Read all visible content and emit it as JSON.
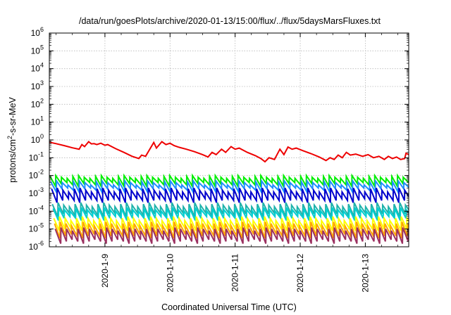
{
  "chart_data": {
    "type": "line",
    "title": "/data/run/goesPlots/archive/2020-01-13/15:00/flux/../flux/5daysMarsFluxes.txt",
    "xlabel": "Coordinated Universal Time (UTC)",
    "ylabel_parts": [
      "protons/cm",
      "2",
      "-s-sr-MeV"
    ],
    "y_scale": "log",
    "ylim": [
      1e-06,
      1000000.0
    ],
    "xlim": [
      "2020-01-08T03:30",
      "2020-01-13T16:00"
    ],
    "grid": true,
    "legend": "none",
    "y_ticks": [
      {
        "base": "10",
        "exp": "-6",
        "value": 1e-06
      },
      {
        "base": "10",
        "exp": "-5",
        "value": 1e-05
      },
      {
        "base": "10",
        "exp": "-4",
        "value": 0.0001
      },
      {
        "base": "10",
        "exp": "-3",
        "value": 0.001
      },
      {
        "base": "10",
        "exp": "-2",
        "value": 0.01
      },
      {
        "base": "10",
        "exp": "-1",
        "value": 0.1
      },
      {
        "base": "10",
        "exp": "0",
        "value": 1
      },
      {
        "base": "10",
        "exp": "1",
        "value": 10
      },
      {
        "base": "10",
        "exp": "2",
        "value": 100
      },
      {
        "base": "10",
        "exp": "3",
        "value": 1000
      },
      {
        "base": "10",
        "exp": "4",
        "value": 10000
      },
      {
        "base": "10",
        "exp": "5",
        "value": 100000
      },
      {
        "base": "10",
        "exp": "6",
        "value": 1000000
      }
    ],
    "x_ticks": [
      {
        "label": "2020-1-9",
        "date": "2020-01-09"
      },
      {
        "label": "2020-1-10",
        "date": "2020-01-10"
      },
      {
        "label": "2020-1-11",
        "date": "2020-01-11"
      },
      {
        "label": "2020-1-12",
        "date": "2020-01-12"
      },
      {
        "label": "2020-1-13",
        "date": "2020-01-13"
      }
    ],
    "series": [
      {
        "color": "#ee0000",
        "width": 2,
        "points": [
          [
            "2020-01-08T03:30",
            0.75
          ],
          [
            "2020-01-08T06:00",
            0.62
          ],
          [
            "2020-01-08T09:00",
            0.48
          ],
          [
            "2020-01-08T12:00",
            0.36
          ],
          [
            "2020-01-08T14:30",
            0.3
          ],
          [
            "2020-01-08T15:30",
            0.55
          ],
          [
            "2020-01-08T16:30",
            0.42
          ],
          [
            "2020-01-08T18:00",
            0.8
          ],
          [
            "2020-01-08T19:00",
            0.6
          ],
          [
            "2020-01-08T20:00",
            0.62
          ],
          [
            "2020-01-08T21:00",
            0.55
          ],
          [
            "2020-01-08T22:30",
            0.65
          ],
          [
            "2020-01-09T00:00",
            0.5
          ],
          [
            "2020-01-09T01:00",
            0.55
          ],
          [
            "2020-01-09T04:00",
            0.32
          ],
          [
            "2020-01-09T07:00",
            0.2
          ],
          [
            "2020-01-09T10:00",
            0.12
          ],
          [
            "2020-01-09T12:30",
            0.09
          ],
          [
            "2020-01-09T13:30",
            0.14
          ],
          [
            "2020-01-09T15:00",
            0.12
          ],
          [
            "2020-01-09T18:00",
            0.72
          ],
          [
            "2020-01-09T19:00",
            0.35
          ],
          [
            "2020-01-09T21:00",
            0.8
          ],
          [
            "2020-01-09T22:30",
            0.55
          ],
          [
            "2020-01-10T00:00",
            0.65
          ],
          [
            "2020-01-10T01:30",
            0.48
          ],
          [
            "2020-01-10T03:00",
            0.4
          ],
          [
            "2020-01-10T06:00",
            0.3
          ],
          [
            "2020-01-10T09:00",
            0.22
          ],
          [
            "2020-01-10T12:00",
            0.15
          ],
          [
            "2020-01-10T14:00",
            0.11
          ],
          [
            "2020-01-10T15:30",
            0.2
          ],
          [
            "2020-01-10T17:00",
            0.15
          ],
          [
            "2020-01-10T19:00",
            0.3
          ],
          [
            "2020-01-10T20:30",
            0.2
          ],
          [
            "2020-01-10T22:30",
            0.42
          ],
          [
            "2020-01-11T00:00",
            0.3
          ],
          [
            "2020-01-11T01:30",
            0.35
          ],
          [
            "2020-01-11T04:30",
            0.2
          ],
          [
            "2020-01-11T07:30",
            0.13
          ],
          [
            "2020-01-11T09:30",
            0.09
          ],
          [
            "2020-01-11T11:00",
            0.06
          ],
          [
            "2020-01-11T12:30",
            0.1
          ],
          [
            "2020-01-11T14:30",
            0.08
          ],
          [
            "2020-01-11T16:30",
            0.3
          ],
          [
            "2020-01-11T18:00",
            0.15
          ],
          [
            "2020-01-11T19:30",
            0.4
          ],
          [
            "2020-01-11T21:00",
            0.3
          ],
          [
            "2020-01-11T22:30",
            0.35
          ],
          [
            "2020-01-12T01:00",
            0.25
          ],
          [
            "2020-01-12T04:00",
            0.17
          ],
          [
            "2020-01-12T07:00",
            0.11
          ],
          [
            "2020-01-12T09:30",
            0.07
          ],
          [
            "2020-01-12T11:00",
            0.1
          ],
          [
            "2020-01-12T12:30",
            0.08
          ],
          [
            "2020-01-12T14:00",
            0.14
          ],
          [
            "2020-01-12T15:30",
            0.1
          ],
          [
            "2020-01-12T17:00",
            0.2
          ],
          [
            "2020-01-12T18:30",
            0.14
          ],
          [
            "2020-01-12T20:30",
            0.16
          ],
          [
            "2020-01-12T23:00",
            0.12
          ],
          [
            "2020-01-13T01:00",
            0.15
          ],
          [
            "2020-01-13T03:00",
            0.1
          ],
          [
            "2020-01-13T05:00",
            0.12
          ],
          [
            "2020-01-13T07:00",
            0.08
          ],
          [
            "2020-01-13T08:30",
            0.12
          ],
          [
            "2020-01-13T10:00",
            0.09
          ],
          [
            "2020-01-13T11:30",
            0.11
          ],
          [
            "2020-01-13T13:00",
            0.08
          ],
          [
            "2020-01-13T14:30",
            0.09
          ],
          [
            "2020-01-13T15:00",
            0.18
          ],
          [
            "2020-01-13T16:00",
            0.15
          ]
        ]
      },
      {
        "color": "#00ee00",
        "width": 2,
        "sawtooth": {
          "lo": [
            0.0025,
            0.0035,
            0.004,
            0.003
          ],
          "hi": [
            0.007,
            0.009,
            0.01,
            0.008
          ]
        }
      },
      {
        "color": "#1e90ff",
        "width": 2,
        "sawtooth": {
          "lo": [
            0.0012,
            0.0018,
            0.002,
            0.0015
          ],
          "hi": [
            0.003,
            0.0045,
            0.005,
            0.004
          ]
        }
      },
      {
        "color": "#0000cd",
        "width": 2,
        "sawtooth": {
          "lo": [
            0.0003,
            0.0004,
            0.0005,
            0.0004
          ],
          "hi": [
            0.0012,
            0.0018,
            0.002,
            0.0015
          ]
        }
      },
      {
        "color": "#20b2aa",
        "width": 2,
        "sawtooth": {
          "lo": [
            5e-05,
            7e-05,
            8e-05,
            6e-05
          ],
          "hi": [
            0.00018,
            0.00025,
            0.0003,
            0.00022
          ]
        }
      },
      {
        "color": "#00ced1",
        "width": 2,
        "sawtooth": {
          "lo": [
            3e-05,
            4e-05,
            5e-05,
            4e-05
          ],
          "hi": [
            0.0001,
            0.00014,
            0.00016,
            0.00012
          ]
        }
      },
      {
        "color": "#ffff00",
        "width": 2,
        "sawtooth": {
          "lo": [
            8e-06,
            1e-05,
            1.2e-05,
            1e-05
          ],
          "hi": [
            3e-05,
            4e-05,
            5e-05,
            4e-05
          ]
        }
      },
      {
        "color": "#ffa500",
        "width": 2,
        "sawtooth": {
          "lo": [
            3e-06,
            4e-06,
            5e-06,
            4e-06
          ],
          "hi": [
            1.5e-05,
            2e-05,
            2.5e-05,
            2e-05
          ]
        }
      },
      {
        "color": "#9b3060",
        "width": 2,
        "sawtooth": {
          "lo": [
            1.5e-06,
            2e-06,
            2.5e-06,
            2e-06
          ],
          "hi": [
            8e-06,
            1e-05,
            1.2e-05,
            1e-05
          ]
        }
      }
    ]
  }
}
